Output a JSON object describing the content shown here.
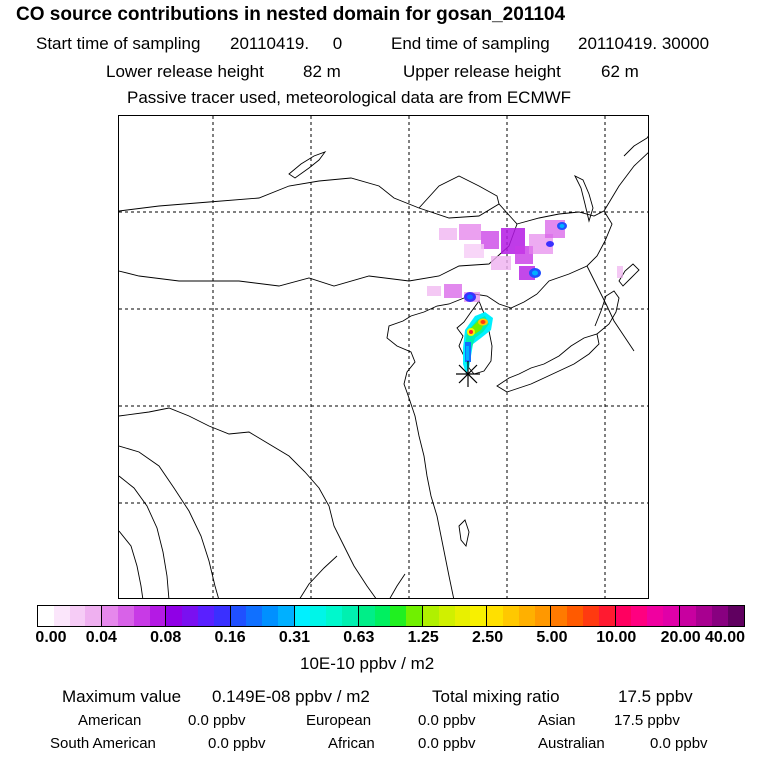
{
  "title": "CO  source contributions in nested domain for gosan_201104",
  "header": {
    "start_label": "Start time of sampling",
    "start_value": "20110419.     0",
    "end_label": "End time of sampling",
    "end_value": "20110419. 30000",
    "lower_label": "Lower release height",
    "lower_value": "82 m",
    "upper_label": "Upper release height",
    "upper_value": "62 m",
    "note": "Passive tracer used, meteorological data are from ECMWF"
  },
  "colorbar": {
    "labels": [
      "0.00",
      "0.04",
      "0.08",
      "0.16",
      "0.31",
      "0.63",
      "1.25",
      "2.50",
      "5.00",
      "10.00",
      "20.00",
      "40.00"
    ],
    "units": "10E-10 ppbv / m2",
    "groups": [
      [
        "#ffffff",
        "#fbe6fb",
        "#f6ccf6",
        "#efb0f0"
      ],
      [
        "#e688ec",
        "#d862e8",
        "#c83ae6",
        "#b41ae4"
      ],
      [
        "#9000e6",
        "#7a10f0",
        "#5a20ff",
        "#3a30ff"
      ],
      [
        "#2050ff",
        "#1070ff",
        "#0090ff",
        "#00b0ff"
      ],
      [
        "#00f0ff",
        "#00f5e8",
        "#00f8cc",
        "#00f0b0"
      ],
      [
        "#00ee88",
        "#00f060",
        "#20f020",
        "#70f000"
      ],
      [
        "#b0f000",
        "#d0f000",
        "#e8f000",
        "#f8f000"
      ],
      [
        "#ffe000",
        "#ffc800",
        "#ffb000",
        "#ff9800"
      ],
      [
        "#ff7a00",
        "#ff5a00",
        "#ff3a10",
        "#ff1a30"
      ],
      [
        "#ff0060",
        "#ff0080",
        "#f000a0",
        "#e000a8"
      ],
      [
        "#c800a0",
        "#a80090",
        "#880080",
        "#600060"
      ]
    ]
  },
  "stats": {
    "max_label": "Maximum value",
    "max_value": "0.149E-08 ppbv / m2",
    "total_label": "Total mixing ratio",
    "total_value": "17.5 ppbv"
  },
  "regions": [
    {
      "name": "American",
      "value": "0.0 ppbv"
    },
    {
      "name": "European",
      "value": "0.0 ppbv"
    },
    {
      "name": "Asian",
      "value": "17.5 ppbv"
    },
    {
      "name": "South American",
      "value": "0.0 ppbv"
    },
    {
      "name": "African",
      "value": "0.0 ppbv"
    },
    {
      "name": "Australian",
      "value": "0.0 ppbv"
    }
  ]
}
